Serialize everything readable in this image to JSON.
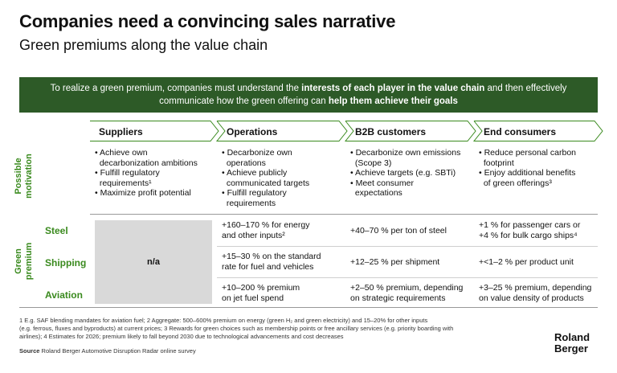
{
  "title": "Companies need a convincing sales narrative",
  "subtitle": "Green premiums along the value chain",
  "banner": {
    "line1_pre": "To realize a green premium, companies must understand the ",
    "line1_bold": "interests of each player in the value chain",
    "line1_post": " and then effectively",
    "line2_pre": "communicate how the green offering can ",
    "line2_bold": "help them achieve their goals"
  },
  "columns": [
    "Suppliers",
    "Operations",
    "B2B customers",
    "End consumers"
  ],
  "motivation_label": [
    "Possible",
    "motivation"
  ],
  "premium_label": [
    "Green",
    "premium"
  ],
  "motivation": {
    "suppliers": [
      "• Achieve own",
      "  decarbonization ambitions",
      "• Fulfill regulatory",
      "  requirements¹",
      "• Maximize profit potential"
    ],
    "operations": [
      "• Decarbonize own",
      "  operations",
      "• Achieve publicly",
      "  communicated targets",
      "• Fulfill regulatory",
      "  requirements"
    ],
    "b2b": [
      "• Decarbonize own emissions",
      "  (Scope 3)",
      "• Achieve targets (e.g. SBTi)",
      "• Meet consumer",
      "  expectations"
    ],
    "consumers": [
      "• Reduce personal carbon",
      "  footprint",
      "• Enjoy additional benefits",
      "  of green offerings³"
    ]
  },
  "rows": [
    {
      "label": "Steel",
      "operations": [
        "+160–170 % for energy",
        "and other inputs²"
      ],
      "b2b": [
        "+40–70 % per ton of steel"
      ],
      "consumers": [
        "+1 % for passenger cars or",
        "+4 % for bulk cargo ships⁴"
      ]
    },
    {
      "label": "Shipping",
      "operations": [
        "+15–30 % on the standard",
        "rate for fuel and vehicles"
      ],
      "b2b": [
        "+12–25 % per shipment"
      ],
      "consumers": [
        "+<1–2 % per product unit"
      ]
    },
    {
      "label": "Aviation",
      "operations": [
        "+10–200 % premium",
        "on jet fuel spend"
      ],
      "b2b": [
        "+2–50 % premium, depending",
        "on strategic requirements"
      ],
      "consumers": [
        "+3–25 % premium, depending",
        "on value density of products"
      ]
    }
  ],
  "na_text": "n/a",
  "footnotes": [
    "1 E.g. SAF blending mandates for aviation fuel; 2  Aggregate: 500–600% premium on energy (green H₂ and green electricity) and 15–20% for other inputs",
    "(e.g. ferrous, fluxes and byproducts) at current prices; 3  Rewards for green choices such as membership points or free ancillary services (e.g. priority boarding with",
    "airlines); 4  Estimates for 2026; premium likely to fall beyond 2030 due to technological advancements and cost decreases"
  ],
  "source_label": "Source",
  "source_text": " Roland Berger Automotive Disruption Radar online survey",
  "logo": [
    "Roland",
    "Berger"
  ],
  "colors": {
    "banner": "#2d5a27",
    "accent_green": "#3a8a1e",
    "na_fill": "#d9d9d9"
  }
}
